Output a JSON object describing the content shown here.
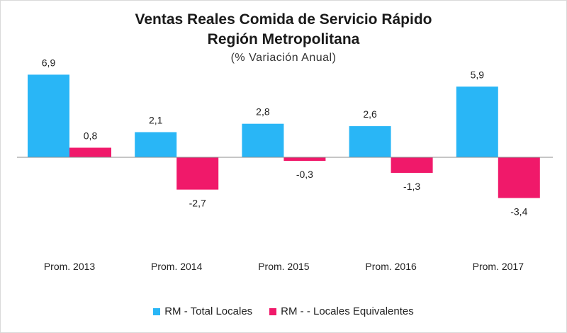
{
  "chart_data": {
    "type": "bar",
    "title_lines": [
      "Ventas Reales Comida de Servicio Rápido",
      "Región Metropolitana"
    ],
    "subtitle": "(% Variación Anual)",
    "categories": [
      "Prom. 2013",
      "Prom. 2014",
      "Prom. 2015",
      "Prom. 2016",
      "Prom. 2017"
    ],
    "series": [
      {
        "name": "RM - Total Locales",
        "color": "#29b6f6",
        "values": [
          6.9,
          2.1,
          2.8,
          2.6,
          5.9
        ],
        "labels": [
          "6,9",
          "2,1",
          "2,8",
          "2,6",
          "5,9"
        ]
      },
      {
        "name": "RM - - Locales Equivalentes",
        "color": "#f0196a",
        "values": [
          0.8,
          -2.7,
          -0.3,
          -1.3,
          -3.4
        ],
        "labels": [
          "0,8",
          "-2,7",
          "-0,3",
          "-1,3",
          "-3,4"
        ]
      }
    ],
    "legend_position": "bottom",
    "grid": false,
    "baseline": 0
  }
}
